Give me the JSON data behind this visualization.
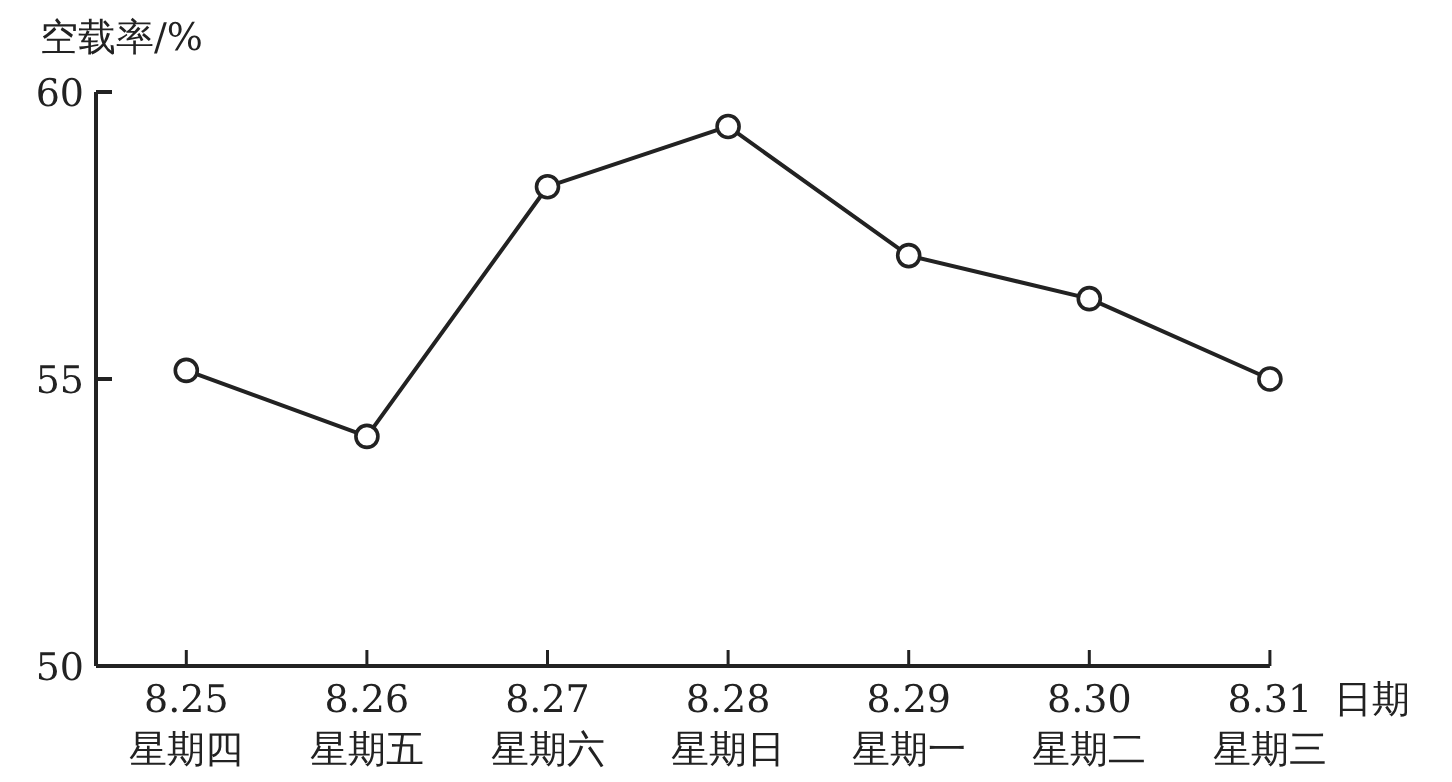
{
  "chart_data": {
    "type": "line",
    "ylabel": "空载率/%",
    "xlabel": "日期",
    "categories": [
      "8.25\n星期四",
      "8.26\n星期五",
      "8.27\n星期六",
      "8.28\n星期日",
      "8.29\n星期一",
      "8.30\n星期二",
      "8.31\n星期三"
    ],
    "series": [
      {
        "color": "#222222",
        "values": [
          55.15,
          54.0,
          58.35,
          59.4,
          57.15,
          56.4,
          55.0
        ]
      }
    ],
    "ylim": [
      50,
      60
    ],
    "yticks": [
      50,
      55,
      60
    ],
    "grid": false,
    "marker": "circle",
    "line_style": "solid"
  }
}
